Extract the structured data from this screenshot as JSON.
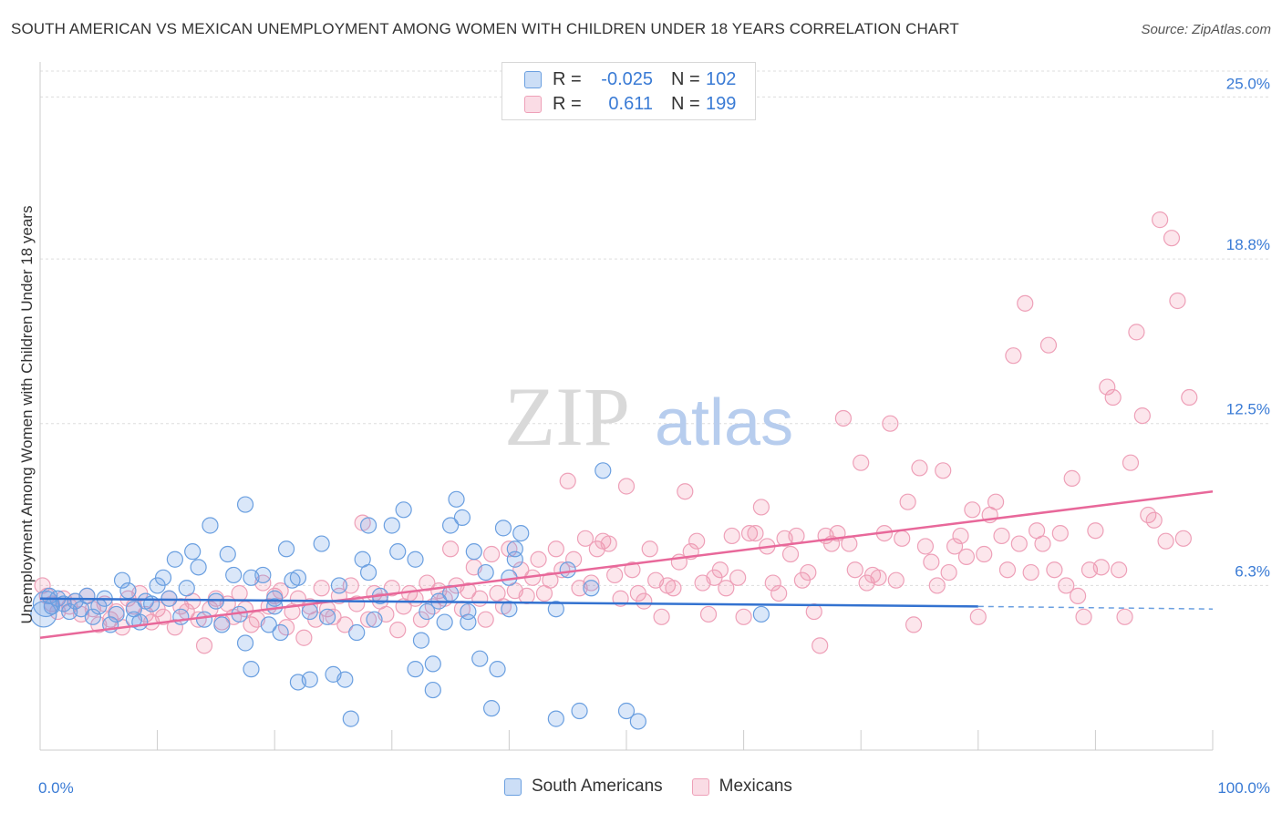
{
  "title": "SOUTH AMERICAN VS MEXICAN UNEMPLOYMENT AMONG WOMEN WITH CHILDREN UNDER 18 YEARS CORRELATION CHART",
  "source": "Source: ZipAtlas.com",
  "watermark": {
    "zip": "ZIP",
    "atlas": "atlas"
  },
  "legend": {
    "rows": [
      {
        "r_label": "R =",
        "r_value": "-0.025",
        "n_label": "N =",
        "n_value": "102"
      },
      {
        "r_label": "R =",
        "r_value": "0.611",
        "n_label": "N =",
        "n_value": "199"
      }
    ]
  },
  "bottom_legend": [
    "South Americans",
    "Mexicans"
  ],
  "colors": {
    "south_fill": "rgba(109,160,230,0.25)",
    "south_stroke": "#6a9fe0",
    "south_line": "#3372d0",
    "mex_fill": "rgba(240,140,170,0.22)",
    "mex_stroke": "#eea0b8",
    "mex_line": "#e8689a",
    "grid": "#dddddd",
    "tick_text": "#3a7bd5"
  },
  "chart_data": {
    "type": "scatter",
    "title": "SOUTH AMERICAN VS MEXICAN UNEMPLOYMENT AMONG WOMEN WITH CHILDREN UNDER 18 YEARS CORRELATION CHART",
    "ylabel": "Unemployment Among Women with Children Under 18 years",
    "xlabel": "",
    "xlim": [
      0,
      100
    ],
    "ylim": [
      0,
      26.2
    ],
    "x_tick_labels": [
      "0.0%",
      "100.0%"
    ],
    "y_ticks": [
      6.3,
      12.5,
      18.8,
      25.0
    ],
    "y_tick_labels": [
      "6.3%",
      "12.5%",
      "18.8%",
      "25.0%"
    ],
    "grid": true,
    "legend_position": "top-center",
    "series": [
      {
        "name": "South Americans",
        "R": -0.025,
        "N": 102,
        "trend": {
          "x": [
            0,
            80
          ],
          "y": [
            5.8,
            5.5
          ],
          "dashed_to": [
            100,
            5.4
          ]
        },
        "points": [
          [
            0.3,
            5.2
          ],
          [
            0.5,
            5.6
          ],
          [
            0.8,
            5.9
          ],
          [
            1.0,
            5.5
          ],
          [
            1.5,
            5.8
          ],
          [
            2,
            5.6
          ],
          [
            2.5,
            5.3
          ],
          [
            3,
            5.7
          ],
          [
            3.5,
            5.4
          ],
          [
            4,
            5.9
          ],
          [
            4.5,
            5.1
          ],
          [
            5,
            5.5
          ],
          [
            5.5,
            5.8
          ],
          [
            6,
            4.8
          ],
          [
            6.5,
            5.2
          ],
          [
            7,
            6.5
          ],
          [
            7.5,
            6.1
          ],
          [
            8,
            5.4
          ],
          [
            8,
            5.0
          ],
          [
            8.5,
            4.9
          ],
          [
            9,
            5.7
          ],
          [
            9.5,
            5.6
          ],
          [
            10,
            6.3
          ],
          [
            10.5,
            6.6
          ],
          [
            11,
            5.8
          ],
          [
            11.5,
            7.3
          ],
          [
            12,
            5.1
          ],
          [
            12.5,
            6.2
          ],
          [
            13,
            7.6
          ],
          [
            13.5,
            7.0
          ],
          [
            14,
            5.0
          ],
          [
            14.5,
            8.6
          ],
          [
            15,
            5.7
          ],
          [
            15.5,
            4.8
          ],
          [
            16,
            7.5
          ],
          [
            16.5,
            6.7
          ],
          [
            17,
            5.2
          ],
          [
            17.5,
            9.4
          ],
          [
            17.5,
            4.1
          ],
          [
            18,
            3.1
          ],
          [
            18,
            6.6
          ],
          [
            19,
            6.7
          ],
          [
            19.5,
            4.8
          ],
          [
            20,
            5.5
          ],
          [
            20.5,
            4.5
          ],
          [
            21,
            7.7
          ],
          [
            21.5,
            6.5
          ],
          [
            22,
            6.6
          ],
          [
            22,
            2.6
          ],
          [
            23,
            5.3
          ],
          [
            23,
            2.7
          ],
          [
            24,
            7.9
          ],
          [
            24.5,
            5.1
          ],
          [
            25,
            2.9
          ],
          [
            25.5,
            6.3
          ],
          [
            26,
            2.7
          ],
          [
            20,
            5.8
          ],
          [
            26.5,
            1.2
          ],
          [
            27,
            4.5
          ],
          [
            27.5,
            7.3
          ],
          [
            28,
            6.8
          ],
          [
            28,
            8.6
          ],
          [
            28.5,
            5.0
          ],
          [
            29,
            5.9
          ],
          [
            30,
            8.6
          ],
          [
            30.5,
            7.6
          ],
          [
            31,
            9.2
          ],
          [
            32,
            7.3
          ],
          [
            32,
            3.1
          ],
          [
            32.5,
            4.2
          ],
          [
            33,
            5.3
          ],
          [
            33.5,
            3.3
          ],
          [
            33.5,
            2.3
          ],
          [
            34,
            5.7
          ],
          [
            34.5,
            4.9
          ],
          [
            35,
            8.6
          ],
          [
            35,
            6.0
          ],
          [
            35.5,
            9.6
          ],
          [
            36,
            8.9
          ],
          [
            36.5,
            4.9
          ],
          [
            36.5,
            5.3
          ],
          [
            37,
            7.6
          ],
          [
            37.5,
            3.5
          ],
          [
            38,
            6.8
          ],
          [
            38.5,
            1.6
          ],
          [
            39,
            3.1
          ],
          [
            39.5,
            8.5
          ],
          [
            40,
            6.6
          ],
          [
            40,
            5.4
          ],
          [
            40.5,
            7.3
          ],
          [
            40.5,
            7.7
          ],
          [
            41,
            8.3
          ],
          [
            44,
            5.4
          ],
          [
            44,
            1.2
          ],
          [
            45,
            6.9
          ],
          [
            46,
            1.5
          ],
          [
            47,
            6.2
          ],
          [
            48,
            10.7
          ],
          [
            50,
            1.5
          ],
          [
            51,
            1.1
          ],
          [
            61.5,
            5.2
          ]
        ]
      },
      {
        "name": "Mexicans",
        "R": 0.611,
        "N": 199,
        "trend": {
          "x": [
            0,
            100
          ],
          "y": [
            4.3,
            9.9
          ]
        },
        "points": [
          [
            0.2,
            6.3
          ],
          [
            0.6,
            5.9
          ],
          [
            1,
            5.6
          ],
          [
            1.5,
            5.3
          ],
          [
            2,
            5.8
          ],
          [
            2.5,
            5.5
          ],
          [
            3,
            5.7
          ],
          [
            3.5,
            5.2
          ],
          [
            4,
            5.9
          ],
          [
            4.5,
            5.4
          ],
          [
            5,
            4.8
          ],
          [
            5.5,
            5.6
          ],
          [
            6,
            5.0
          ],
          [
            6.5,
            5.3
          ],
          [
            7,
            4.7
          ],
          [
            7.5,
            5.8
          ],
          [
            8,
            5.5
          ],
          [
            8.5,
            6.0
          ],
          [
            9,
            5.2
          ],
          [
            9.5,
            4.9
          ],
          [
            10,
            5.4
          ],
          [
            10.5,
            5.1
          ],
          [
            11,
            5.8
          ],
          [
            11.5,
            4.7
          ],
          [
            12,
            5.5
          ],
          [
            12.5,
            5.3
          ],
          [
            13,
            5.7
          ],
          [
            13.5,
            5.0
          ],
          [
            14,
            4.0
          ],
          [
            14.5,
            5.4
          ],
          [
            15,
            5.8
          ],
          [
            15.5,
            4.9
          ],
          [
            16,
            5.6
          ],
          [
            16.5,
            5.1
          ],
          [
            17,
            6.0
          ],
          [
            17.5,
            5.4
          ],
          [
            18,
            4.8
          ],
          [
            18.5,
            5.0
          ],
          [
            19,
            6.4
          ],
          [
            19.5,
            5.5
          ],
          [
            20,
            5.9
          ],
          [
            20.5,
            6.1
          ],
          [
            21,
            4.7
          ],
          [
            21.5,
            5.3
          ],
          [
            22,
            5.8
          ],
          [
            22.5,
            4.3
          ],
          [
            23,
            5.5
          ],
          [
            23.5,
            5.0
          ],
          [
            24,
            6.2
          ],
          [
            24.5,
            5.4
          ],
          [
            25,
            5.1
          ],
          [
            25.5,
            5.9
          ],
          [
            26,
            4.8
          ],
          [
            26.5,
            6.3
          ],
          [
            27,
            5.6
          ],
          [
            27.5,
            8.7
          ],
          [
            28,
            5.0
          ],
          [
            28.5,
            6.0
          ],
          [
            29,
            5.7
          ],
          [
            29.5,
            5.2
          ],
          [
            30,
            6.2
          ],
          [
            30.5,
            4.6
          ],
          [
            31,
            5.5
          ],
          [
            31.5,
            6.0
          ],
          [
            32,
            5.8
          ],
          [
            32.5,
            5.0
          ],
          [
            33,
            6.4
          ],
          [
            33.5,
            5.5
          ],
          [
            34,
            6.1
          ],
          [
            34.5,
            5.8
          ],
          [
            35,
            7.7
          ],
          [
            35.5,
            6.3
          ],
          [
            36,
            5.4
          ],
          [
            36.5,
            6.1
          ],
          [
            37,
            7.0
          ],
          [
            37.5,
            5.8
          ],
          [
            38,
            5.0
          ],
          [
            38.5,
            7.5
          ],
          [
            39,
            6.0
          ],
          [
            39.5,
            5.5
          ],
          [
            40,
            7.7
          ],
          [
            40.5,
            6.1
          ],
          [
            41,
            6.9
          ],
          [
            41.5,
            5.9
          ],
          [
            42,
            6.6
          ],
          [
            42.5,
            7.3
          ],
          [
            43,
            6.0
          ],
          [
            43.5,
            6.5
          ],
          [
            44,
            7.7
          ],
          [
            44.5,
            6.9
          ],
          [
            45,
            10.3
          ],
          [
            45.5,
            7.3
          ],
          [
            46,
            6.2
          ],
          [
            46.5,
            8.1
          ],
          [
            47,
            6.4
          ],
          [
            47.5,
            7.7
          ],
          [
            48,
            8.0
          ],
          [
            48.5,
            7.9
          ],
          [
            49,
            6.7
          ],
          [
            49.5,
            5.8
          ],
          [
            50,
            10.1
          ],
          [
            50.5,
            6.9
          ],
          [
            51,
            6.0
          ],
          [
            51.5,
            5.7
          ],
          [
            52,
            7.7
          ],
          [
            52.5,
            6.5
          ],
          [
            53,
            5.1
          ],
          [
            53.5,
            6.3
          ],
          [
            54,
            6.2
          ],
          [
            54.5,
            7.2
          ],
          [
            55,
            9.9
          ],
          [
            55.5,
            7.6
          ],
          [
            56,
            8.0
          ],
          [
            56.5,
            6.4
          ],
          [
            57,
            5.2
          ],
          [
            57.5,
            6.6
          ],
          [
            58,
            6.9
          ],
          [
            58.5,
            6.2
          ],
          [
            59,
            8.2
          ],
          [
            59.5,
            6.6
          ],
          [
            60,
            5.1
          ],
          [
            60.5,
            8.3
          ],
          [
            61,
            8.3
          ],
          [
            61.5,
            9.3
          ],
          [
            62,
            7.8
          ],
          [
            62.5,
            6.4
          ],
          [
            63,
            6.0
          ],
          [
            63.5,
            8.1
          ],
          [
            64,
            7.5
          ],
          [
            64.5,
            8.2
          ],
          [
            65,
            6.5
          ],
          [
            65.5,
            6.8
          ],
          [
            66,
            5.3
          ],
          [
            66.5,
            4.0
          ],
          [
            67,
            8.2
          ],
          [
            67.5,
            7.9
          ],
          [
            68,
            8.3
          ],
          [
            68.5,
            12.7
          ],
          [
            69,
            7.9
          ],
          [
            69.5,
            6.9
          ],
          [
            70,
            11.0
          ],
          [
            70.5,
            6.4
          ],
          [
            71,
            6.7
          ],
          [
            71.5,
            6.6
          ],
          [
            72,
            8.3
          ],
          [
            72.5,
            12.5
          ],
          [
            73,
            6.5
          ],
          [
            73.5,
            8.1
          ],
          [
            74,
            9.5
          ],
          [
            74.5,
            4.8
          ],
          [
            75,
            10.8
          ],
          [
            75.5,
            7.8
          ],
          [
            76,
            7.2
          ],
          [
            76.5,
            6.3
          ],
          [
            77,
            10.7
          ],
          [
            77.5,
            6.8
          ],
          [
            78,
            7.8
          ],
          [
            78.5,
            8.2
          ],
          [
            79,
            7.4
          ],
          [
            79.5,
            9.2
          ],
          [
            80,
            5.1
          ],
          [
            80.5,
            7.5
          ],
          [
            81,
            9.0
          ],
          [
            81.5,
            9.5
          ],
          [
            82,
            8.2
          ],
          [
            82.5,
            6.9
          ],
          [
            83,
            15.1
          ],
          [
            83.5,
            7.9
          ],
          [
            84,
            17.1
          ],
          [
            84.5,
            6.8
          ],
          [
            85,
            8.4
          ],
          [
            85.5,
            7.9
          ],
          [
            86,
            15.5
          ],
          [
            86.5,
            6.9
          ],
          [
            87,
            8.3
          ],
          [
            87.5,
            6.3
          ],
          [
            88,
            10.4
          ],
          [
            88.5,
            5.9
          ],
          [
            89,
            5.1
          ],
          [
            89.5,
            6.9
          ],
          [
            90,
            8.4
          ],
          [
            90.5,
            7.0
          ],
          [
            91,
            13.9
          ],
          [
            91.5,
            13.5
          ],
          [
            92,
            6.9
          ],
          [
            92.5,
            5.1
          ],
          [
            93,
            11.0
          ],
          [
            93.5,
            16.0
          ],
          [
            94,
            12.8
          ],
          [
            94.5,
            9.0
          ],
          [
            95,
            8.8
          ],
          [
            95.5,
            20.3
          ],
          [
            96,
            8.0
          ],
          [
            96.5,
            19.6
          ],
          [
            97,
            17.2
          ],
          [
            97.5,
            8.1
          ],
          [
            98,
            13.5
          ]
        ]
      }
    ]
  }
}
